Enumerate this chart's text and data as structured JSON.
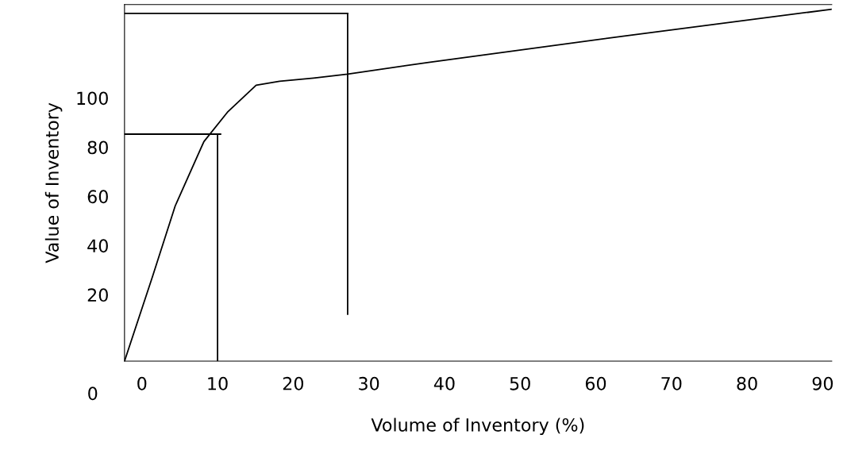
{
  "chart_data": {
    "type": "line",
    "xlabel": "Volume of Inventory (%)",
    "ylabel": "Value of Inventory",
    "annotations": [
      "0"
    ],
    "xlim": [
      -2.3,
      91.2
    ],
    "ylim": [
      -7,
      138
    ],
    "xticks": [
      0,
      10,
      20,
      30,
      40,
      50,
      60,
      70,
      80,
      90
    ],
    "yticks": [
      20,
      40,
      60,
      80,
      100
    ],
    "grid": false,
    "legend": false,
    "marker": "none",
    "line_style": "solid",
    "series": [
      {
        "color": "#000000",
        "x": [
          -2.3,
          1.4,
          4.4,
          8.2,
          11.3,
          15.1,
          18.2,
          22.7,
          27.2,
          37.9,
          63.8,
          91.2
        ],
        "values": [
          -7,
          27.4,
          56.1,
          82.3,
          94.2,
          105.2,
          106.8,
          108.1,
          109.7,
          114.5,
          125.2,
          136.1
        ]
      },
      {
        "color": "#000000",
        "x": [
          -2.3,
          10.4
        ],
        "values": [
          85.3,
          85.3
        ]
      },
      {
        "color": "#000000",
        "x": [
          10.0,
          10.0
        ],
        "values": [
          85.3,
          -7
        ]
      },
      {
        "color": "#000000",
        "x": [
          -2.3,
          27.2
        ],
        "values": [
          134.4,
          134.4
        ]
      },
      {
        "color": "#000000",
        "x": [
          27.2,
          27.2
        ],
        "values": [
          134.4,
          12.1
        ]
      }
    ]
  }
}
